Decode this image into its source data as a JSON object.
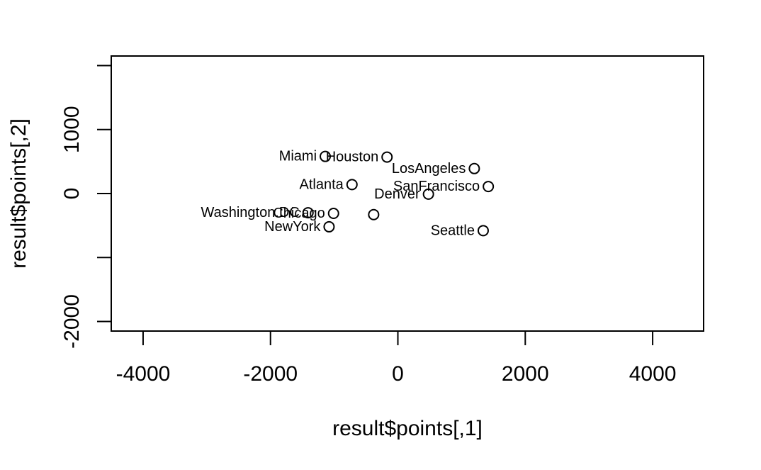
{
  "chart_data": {
    "type": "scatter",
    "title": "",
    "xlabel": "result$points[,1]",
    "ylabel": "result$points[,2]",
    "xlim": [
      -4500,
      4800
    ],
    "ylim": [
      -2150,
      2150
    ],
    "x_ticks": [
      -4000,
      -2000,
      0,
      2000,
      4000
    ],
    "x_tick_labels": [
      "-4000",
      "-2000",
      "0",
      "2000",
      "4000"
    ],
    "y_ticks": [
      -2000,
      -1000,
      0,
      1000,
      2000
    ],
    "y_tick_labels": [
      "-2000",
      "",
      "0",
      "1000",
      ""
    ],
    "grid": false,
    "marker": "open-circle",
    "points": [
      {
        "label": "Miami",
        "x": -1140,
        "y": 580
      },
      {
        "label": "Houston",
        "x": -170,
        "y": 570
      },
      {
        "label": "LosAngeles",
        "x": 1200,
        "y": 390
      },
      {
        "label": "Atlanta",
        "x": -720,
        "y": 140
      },
      {
        "label": "SanFrancisco",
        "x": 1420,
        "y": 110
      },
      {
        "label": "Denver",
        "x": 480,
        "y": -10
      },
      {
        "label": "Washington.DC",
        "x": -1410,
        "y": -300
      },
      {
        "label": "Chicago",
        "x": -1010,
        "y": -310
      },
      {
        "label": "",
        "x": -380,
        "y": -330
      },
      {
        "label": "NewYork",
        "x": -1080,
        "y": -520
      },
      {
        "label": "Seattle",
        "x": 1340,
        "y": -580
      }
    ]
  }
}
